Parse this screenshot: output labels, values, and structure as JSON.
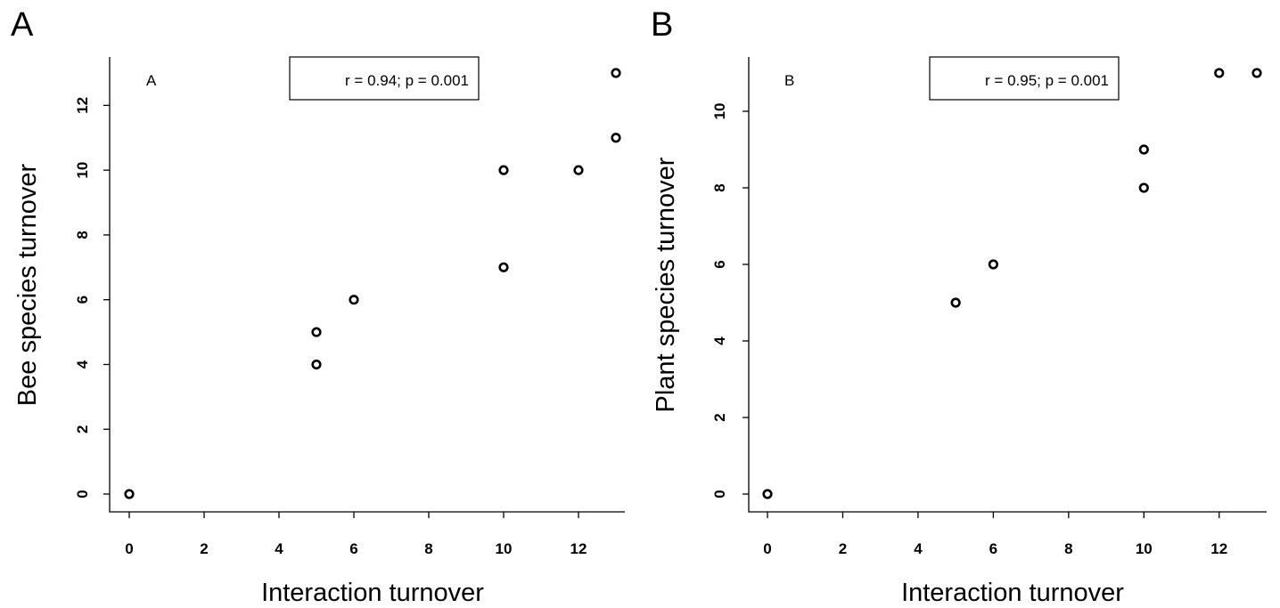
{
  "chart_data": [
    {
      "type": "scatter",
      "panel_label": "A",
      "inner_label": "A",
      "annotation": "r = 0.94; p = 0.001",
      "xlabel": "Interaction turnover",
      "ylabel": "Bee species turnover",
      "xlim": [
        0,
        13
      ],
      "ylim": [
        0,
        13
      ],
      "xticks": [
        "0",
        "2",
        "4",
        "6",
        "8",
        "10",
        "12"
      ],
      "yticks": [
        "0",
        "2",
        "4",
        "6",
        "8",
        "10",
        "12"
      ],
      "grid": false,
      "points": [
        {
          "x": 0,
          "y": 0
        },
        {
          "x": 5,
          "y": 4
        },
        {
          "x": 5,
          "y": 5
        },
        {
          "x": 6,
          "y": 6
        },
        {
          "x": 10,
          "y": 7
        },
        {
          "x": 10,
          "y": 10
        },
        {
          "x": 12,
          "y": 10
        },
        {
          "x": 13,
          "y": 11
        },
        {
          "x": 13,
          "y": 13
        }
      ]
    },
    {
      "type": "scatter",
      "panel_label": "B",
      "inner_label": "B",
      "annotation": "r = 0.95; p = 0.001",
      "xlabel": "Interaction turnover",
      "ylabel": "Plant species turnover",
      "xlim": [
        0,
        13
      ],
      "ylim": [
        0,
        11
      ],
      "xticks": [
        "0",
        "2",
        "4",
        "6",
        "8",
        "10",
        "12"
      ],
      "yticks": [
        "0",
        "2",
        "4",
        "6",
        "8",
        "10"
      ],
      "grid": false,
      "points": [
        {
          "x": 0,
          "y": 0
        },
        {
          "x": 5,
          "y": 5
        },
        {
          "x": 6,
          "y": 6
        },
        {
          "x": 10,
          "y": 8
        },
        {
          "x": 10,
          "y": 9
        },
        {
          "x": 12,
          "y": 11
        },
        {
          "x": 13,
          "y": 11
        }
      ]
    }
  ]
}
